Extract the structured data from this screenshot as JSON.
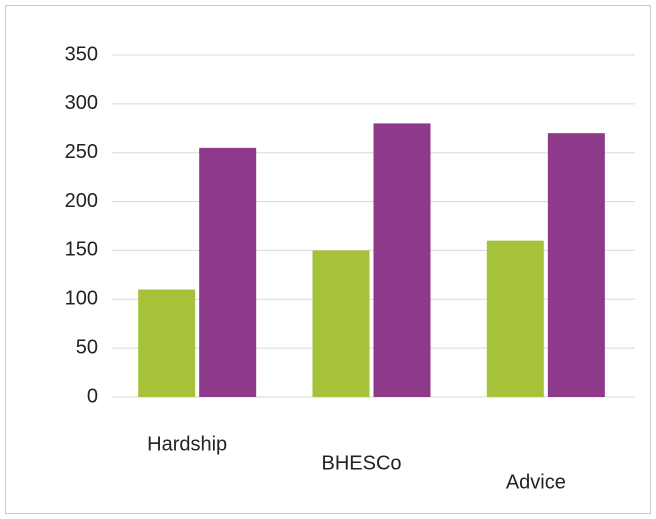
{
  "chart_data": {
    "type": "bar",
    "categories": [
      "Hardship",
      "BHESCo",
      "Advice"
    ],
    "series": [
      {
        "color": "#a6c23a",
        "values": [
          110,
          150,
          160
        ]
      },
      {
        "color": "#8e3a8a",
        "values": [
          255,
          280,
          270
        ]
      }
    ],
    "ylim": [
      0,
      350
    ],
    "yticks": [
      0,
      50,
      100,
      150,
      200,
      250,
      300,
      350
    ],
    "grid": true
  }
}
